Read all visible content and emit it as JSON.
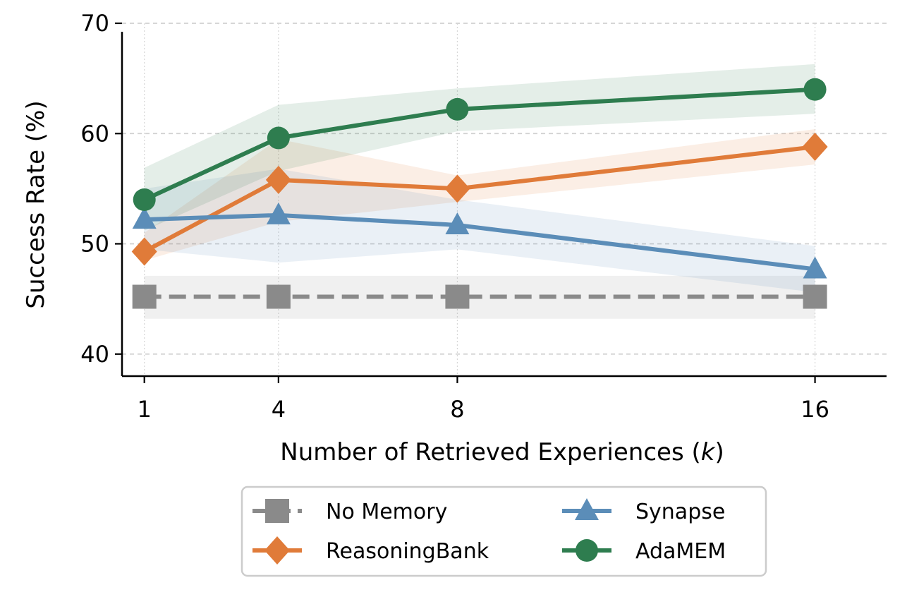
{
  "chart_data": {
    "type": "line",
    "title": "",
    "xlabel": "Number of Retrieved Experiences (",
    "xlabel_var": "k",
    "xlabel_end": ")",
    "ylabel": "Success Rate (%)",
    "x": [
      1,
      4,
      8,
      16
    ],
    "xticks": [
      "1",
      "4",
      "8",
      "16"
    ],
    "yticks": [
      "40",
      "50",
      "60",
      "70"
    ],
    "ytick_values": [
      40,
      50,
      60,
      70
    ],
    "xlim": [
      0.5,
      17.6
    ],
    "ylim": [
      38,
      70
    ],
    "grid": true,
    "legend_position": "below",
    "series": [
      {
        "name": "No Memory",
        "values": [
          45.2,
          45.2,
          45.2,
          45.2
        ],
        "lower": [
          43.2,
          43.2,
          43.2,
          43.2
        ],
        "upper": [
          47.1,
          47.1,
          47.1,
          47.1
        ],
        "color": "#8a8a8a",
        "marker": "square",
        "dashed": true
      },
      {
        "name": "ReasoningBank",
        "values": [
          49.3,
          55.8,
          55.0,
          58.8
        ],
        "lower": [
          48.5,
          52.0,
          53.8,
          57.2
        ],
        "upper": [
          51.0,
          59.5,
          56.2,
          60.4
        ],
        "color": "#e07b39",
        "marker": "diamond",
        "dashed": false
      },
      {
        "name": "Synapse",
        "values": [
          52.2,
          52.6,
          51.7,
          47.7
        ],
        "lower": [
          49.5,
          48.3,
          49.5,
          45.6
        ],
        "upper": [
          55.0,
          56.8,
          54.0,
          49.8
        ],
        "color": "#5b8db8",
        "marker": "triangle",
        "dashed": false
      },
      {
        "name": "AdaMEM",
        "values": [
          54.0,
          59.6,
          62.2,
          64.0
        ],
        "lower": [
          51.2,
          56.6,
          60.2,
          61.8
        ],
        "upper": [
          56.9,
          62.6,
          64.1,
          66.3
        ],
        "color": "#2e7d4f",
        "marker": "circle",
        "dashed": false
      }
    ],
    "legend_order": [
      0,
      2,
      1,
      3
    ]
  }
}
